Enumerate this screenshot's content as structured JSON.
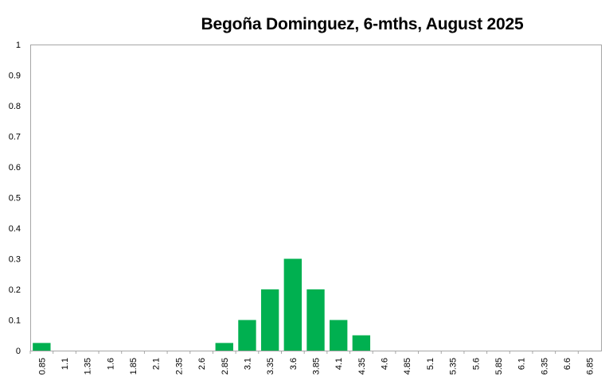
{
  "chart_data": {
    "type": "bar",
    "title": "Begoña Dominguez, 6-mths, August 2025",
    "xlabel": "",
    "ylabel": "",
    "ylim": [
      0,
      1
    ],
    "yticks": [
      "0",
      "0.1",
      "0.2",
      "0.3",
      "0.4",
      "0.5",
      "0.6",
      "0.7",
      "0.8",
      "0.9",
      "1"
    ],
    "categories": [
      "0.85",
      "1.1",
      "1.35",
      "1.6",
      "1.85",
      "2.1",
      "2.35",
      "2.6",
      "2.85",
      "3.1",
      "3.35",
      "3.6",
      "3.85",
      "4.1",
      "4.35",
      "4.6",
      "4.85",
      "5.1",
      "5.35",
      "5.6",
      "5.85",
      "6.1",
      "6.35",
      "6.6",
      "6.85"
    ],
    "values": [
      0.025,
      0,
      0,
      0,
      0,
      0,
      0,
      0,
      0.025,
      0.1,
      0.2,
      0.3,
      0.2,
      0.1,
      0.05,
      0,
      0,
      0,
      0,
      0,
      0,
      0,
      0,
      0,
      0
    ],
    "grid": false,
    "legend": "none",
    "bar_color": "#00B050",
    "axis_color": "#a6a6a6"
  }
}
